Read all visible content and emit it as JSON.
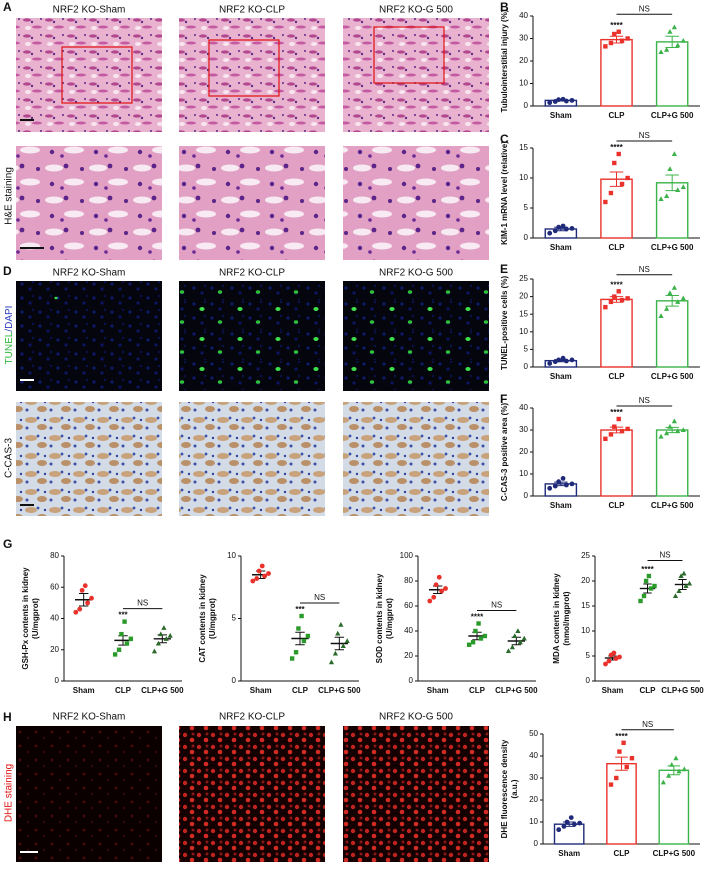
{
  "figure": {
    "panel_labels": [
      "A",
      "B",
      "C",
      "D",
      "E",
      "F",
      "G",
      "H"
    ],
    "he": {
      "columns": [
        "NRF2 KO-Sham",
        "NRF2 KO-CLP",
        "NRF2 KO-G 500"
      ],
      "row_label": "H&E staining"
    },
    "d": {
      "columns": [
        "NRF2 KO-Sham",
        "NRF2 KO-CLP",
        "NRF2 KO-G 500"
      ],
      "tunel": "TUNEL",
      "dapi": "/DAPI",
      "cas3": "C-CAS-3"
    },
    "h": {
      "columns": [
        "NRF2 KO-Sham",
        "NRF2 KO-CLP",
        "NRF2 KO-G 500"
      ],
      "row_label": "DHE staining"
    }
  },
  "chart_data": [
    {
      "type": "bar",
      "ylabel": [
        "Tubulointerstitial injury (%)"
      ],
      "categories": [
        "Sham",
        "CLP",
        "CLP+G 500"
      ],
      "values": [
        2.5,
        29.5,
        28.5
      ],
      "errors": [
        0.3,
        1.5,
        2.5
      ],
      "points": [
        [
          1.5,
          2.0,
          2.2,
          2.5,
          2.8,
          3.0
        ],
        [
          26.5,
          28,
          29,
          30,
          32,
          33
        ],
        [
          24,
          25,
          27,
          29,
          33,
          35
        ]
      ],
      "colors": [
        "#1f2a7a",
        "#e8322b",
        "#3cb34a"
      ],
      "ylim": [
        0,
        40
      ],
      "yticks": [
        0,
        10,
        20,
        30,
        40
      ],
      "stars": "****",
      "comparison": "NS"
    },
    {
      "type": "bar",
      "ylabel": [
        "KIM-1 mRNA level (relative)"
      ],
      "categories": [
        "Sham",
        "CLP",
        "CLP+G 500"
      ],
      "values": [
        1.5,
        9.8,
        9.2
      ],
      "errors": [
        0.3,
        1.2,
        1.3
      ],
      "points": [
        [
          0.8,
          1.2,
          1.5,
          1.6,
          1.8,
          2.0
        ],
        [
          6,
          7.5,
          9,
          10,
          12.5,
          14
        ],
        [
          6.5,
          7,
          8,
          8.5,
          11.5,
          14
        ]
      ],
      "colors": [
        "#1f2a7a",
        "#e8322b",
        "#3cb34a"
      ],
      "ylim": [
        0,
        15
      ],
      "yticks": [
        0,
        5,
        10,
        15
      ],
      "stars": "****",
      "comparison": "NS"
    },
    {
      "type": "bar",
      "ylabel": [
        "TUNEL-positive cells (%)"
      ],
      "categories": [
        "Sham",
        "CLP",
        "CLP+G 500"
      ],
      "values": [
        1.8,
        19.2,
        18.8
      ],
      "errors": [
        0.3,
        0.8,
        1.5
      ],
      "points": [
        [
          1,
          1.5,
          1.7,
          2,
          2,
          2.5
        ],
        [
          17,
          18.5,
          19,
          19.5,
          20,
          21.5
        ],
        [
          14.5,
          16.5,
          18.5,
          19.5,
          21,
          22.5
        ]
      ],
      "colors": [
        "#1f2a7a",
        "#e8322b",
        "#3cb34a"
      ],
      "ylim": [
        0,
        25
      ],
      "yticks": [
        0,
        5,
        10,
        15,
        20,
        25
      ],
      "stars": "****",
      "comparison": "NS"
    },
    {
      "type": "bar",
      "ylabel": [
        "C-CAS-3 positive area (%)"
      ],
      "categories": [
        "Sham",
        "CLP",
        "CLP+G 500"
      ],
      "values": [
        5.5,
        30,
        30
      ],
      "errors": [
        0.8,
        1.3,
        1.2
      ],
      "points": [
        [
          3.5,
          4.5,
          5,
          5.5,
          6.5,
          8
        ],
        [
          26,
          28,
          29.5,
          30.5,
          31.5,
          35
        ],
        [
          27,
          28.5,
          29.5,
          30,
          31.5,
          34
        ]
      ],
      "colors": [
        "#1f2a7a",
        "#e8322b",
        "#3cb34a"
      ],
      "ylim": [
        0,
        40
      ],
      "yticks": [
        0,
        10,
        20,
        30,
        40
      ],
      "stars": "****",
      "comparison": "NS"
    },
    {
      "type": "dot",
      "ylabel": [
        "GSH-Px contents in  kidney",
        "(U/mgprot)"
      ],
      "categories": [
        "Sham",
        "CLP",
        "CLP+G 500"
      ],
      "values": [
        52,
        26,
        27
      ],
      "errors": [
        4,
        3,
        2.5
      ],
      "points": [
        [
          44,
          46,
          50,
          53,
          58,
          61
        ],
        [
          17,
          20,
          24,
          27,
          30,
          38
        ],
        [
          19,
          24,
          27,
          29,
          30,
          34
        ]
      ],
      "colors": [
        "#e8322b",
        "#2a9a2a",
        "#2a6a2a"
      ],
      "ylim": [
        0,
        80
      ],
      "yticks": [
        0,
        20,
        40,
        60,
        80
      ],
      "stars": "***",
      "comparison": "NS"
    },
    {
      "type": "dot",
      "ylabel": [
        "CAT contents in  kidney",
        "(U/mgprot)"
      ],
      "categories": [
        "Sham",
        "CLP",
        "CLP+G 500"
      ],
      "values": [
        8.5,
        3.4,
        3.0
      ],
      "errors": [
        0.3,
        0.5,
        0.5
      ],
      "points": [
        [
          8,
          8.2,
          8.4,
          8.6,
          8.8,
          9.2
        ],
        [
          1.8,
          2.3,
          3.2,
          3.6,
          4.2,
          5.2
        ],
        [
          1.5,
          2.2,
          2.8,
          3.2,
          3.8,
          4.5
        ]
      ],
      "colors": [
        "#e8322b",
        "#2a9a2a",
        "#2a6a2a"
      ],
      "ylim": [
        0,
        10
      ],
      "yticks": [
        0,
        5,
        10
      ],
      "stars": "***",
      "comparison": "NS"
    },
    {
      "type": "dot",
      "ylabel": [
        "SOD contents in kidney",
        "(U/mgprot)"
      ],
      "categories": [
        "Sham",
        "CLP",
        "CLP+G 500"
      ],
      "values": [
        73,
        36,
        32
      ],
      "errors": [
        3,
        3,
        3
      ],
      "points": [
        [
          64,
          67,
          72,
          74,
          77,
          83
        ],
        [
          29,
          31,
          34,
          36,
          40,
          46
        ],
        [
          24,
          27,
          31,
          34,
          36,
          40
        ]
      ],
      "colors": [
        "#e8322b",
        "#2a9a2a",
        "#2a6a2a"
      ],
      "ylim": [
        0,
        100
      ],
      "yticks": [
        0,
        20,
        40,
        60,
        80,
        100
      ],
      "stars": "****",
      "comparison": "NS"
    },
    {
      "type": "dot",
      "ylabel": [
        "MDA contents in kidney",
        "(nmol/mgprot)"
      ],
      "categories": [
        "Sham",
        "CLP",
        "CLP+G 500"
      ],
      "values": [
        4.6,
        18.5,
        19.3
      ],
      "errors": [
        0.4,
        0.9,
        1.0
      ],
      "points": [
        [
          3.4,
          4,
          4.5,
          4.8,
          5.2,
          5.6
        ],
        [
          16,
          17,
          18.5,
          19,
          20,
          21
        ],
        [
          17,
          18,
          19,
          19.5,
          21,
          21.5
        ]
      ],
      "colors": [
        "#e8322b",
        "#2a9a2a",
        "#2a6a2a"
      ],
      "ylim": [
        0,
        25
      ],
      "yticks": [
        0,
        5,
        10,
        15,
        20,
        25
      ],
      "stars": "****",
      "comparison": "NS"
    },
    {
      "type": "bar",
      "ylabel": [
        "DHE fluorescence density",
        "(a.u.)"
      ],
      "categories": [
        "Sham",
        "CLP",
        "CLP+G 500"
      ],
      "values": [
        9,
        36.5,
        33.5
      ],
      "errors": [
        1,
        3,
        2
      ],
      "points": [
        [
          6.5,
          8,
          9,
          9.5,
          10,
          12
        ],
        [
          27,
          30,
          35,
          39,
          42,
          46
        ],
        [
          28,
          31,
          33,
          34,
          36,
          39
        ]
      ],
      "colors": [
        "#1f2a7a",
        "#e8322b",
        "#3cb34a"
      ],
      "ylim": [
        0,
        50
      ],
      "yticks": [
        0,
        10,
        20,
        30,
        40,
        50
      ],
      "stars": "****",
      "comparison": "NS"
    }
  ]
}
